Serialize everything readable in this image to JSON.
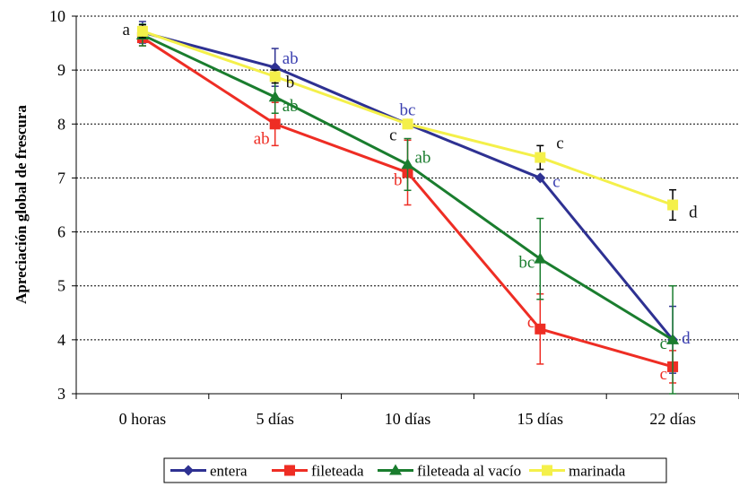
{
  "chart_data": {
    "type": "line",
    "title": "",
    "ylabel": "Apreciación global de frescura",
    "xlabel": "",
    "categories": [
      "0 horas",
      "5 días",
      "10 días",
      "15 días",
      "22 días"
    ],
    "ylim": [
      3,
      10
    ],
    "yticks": [
      3,
      4,
      5,
      6,
      7,
      8,
      9,
      10
    ],
    "grid": "horizontal dotted",
    "legend_position": "bottom",
    "series": [
      {
        "name": "entera",
        "color": "#2e3192",
        "marker": "diamond",
        "values": [
          9.7,
          9.05,
          8.0,
          7.0,
          4.0
        ],
        "errors": [
          0.2,
          0.35,
          null,
          null,
          0.62
        ],
        "labels": [
          "",
          "ab",
          "bc",
          "c",
          "d"
        ],
        "label_color": "#3a3fb0"
      },
      {
        "name": "fileteada",
        "color": "#ee2d24",
        "marker": "square",
        "values": [
          9.6,
          8.0,
          7.1,
          4.2,
          3.5
        ],
        "errors": [
          0.15,
          0.4,
          0.6,
          0.65,
          0.3
        ],
        "labels": [
          "",
          "ab",
          "b",
          "c",
          "c"
        ],
        "label_color": "#ee2d24"
      },
      {
        "name": "fileteada al vacío",
        "color": "#1a7d2e",
        "marker": "triangle",
        "values": [
          9.65,
          8.5,
          7.25,
          5.5,
          4.0
        ],
        "errors": [
          0.2,
          0.3,
          0.48,
          0.75,
          1.0
        ],
        "labels": [
          "",
          "ab",
          "ab",
          "bc",
          "c"
        ],
        "label_color": "#1a7d2e"
      },
      {
        "name": "marinada",
        "color": "#f4f04a",
        "marker": "square",
        "values": [
          9.72,
          8.88,
          8.0,
          7.38,
          6.5
        ],
        "errors": [
          0.12,
          0.12,
          null,
          0.22,
          0.28
        ],
        "labels": [
          "a",
          "b",
          "c",
          "c",
          "d"
        ],
        "label_color": "#111111"
      }
    ]
  }
}
